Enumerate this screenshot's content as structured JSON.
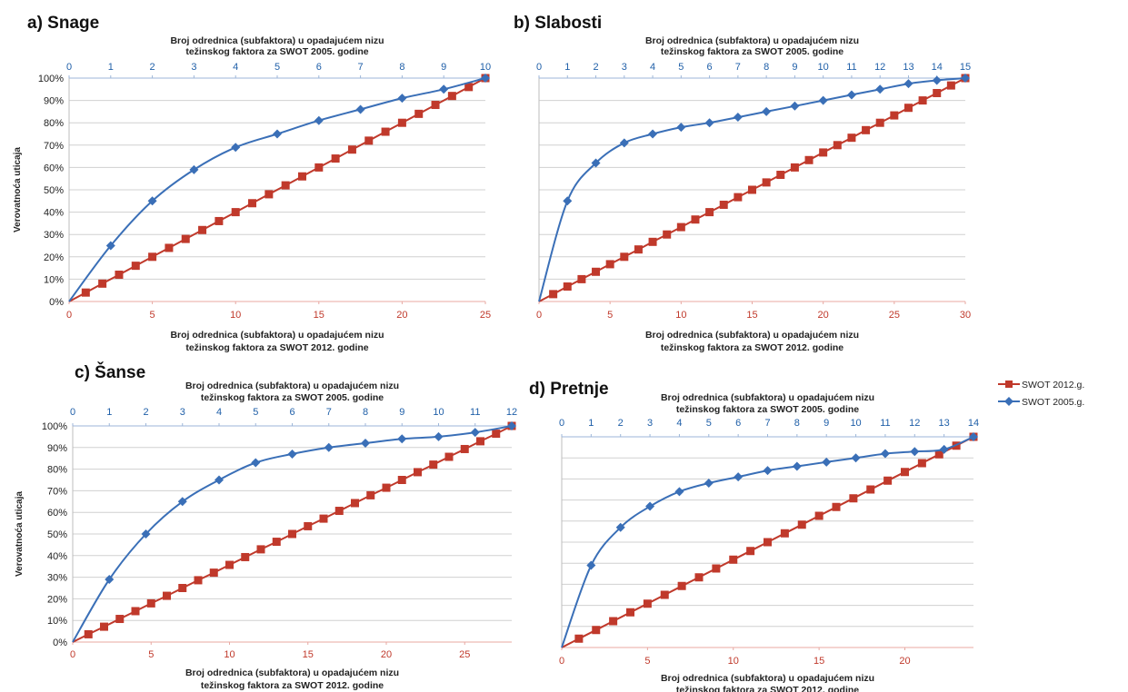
{
  "colors": {
    "red": "#c0392b",
    "blue": "#3a6fb7",
    "grid": "#d0d0d0"
  },
  "legend": [
    {
      "label": "SWOT 2012.g.",
      "color": "#c0392b",
      "marker": "square"
    },
    {
      "label": "SWOT 2005.g.",
      "color": "#3a6fb7",
      "marker": "diamond"
    }
  ],
  "chart_data": [
    {
      "type": "line",
      "title": "a) Snage",
      "xlabel_top": [
        "Broj odrednica (subfaktora) u opadajućem nizu",
        "težinskog faktora za SWOT 2005. godine"
      ],
      "xlabel_bottom": [
        "Broj odrednica (subfaktora) u opadajućem nizu",
        "težinskog faktora za SWOT 2012. godine"
      ],
      "ylabel": "Verovatnoća uticaja",
      "yticks": [
        "0%",
        "10%",
        "20%",
        "30%",
        "40%",
        "50%",
        "60%",
        "70%",
        "80%",
        "90%",
        "100%"
      ],
      "ylim": [
        0,
        100
      ],
      "x_bottom_range": [
        0,
        25
      ],
      "x_bottom_ticks": [
        0,
        5,
        10,
        15,
        20,
        25
      ],
      "x_top_range": [
        0,
        10
      ],
      "x_top_ticks": [
        0,
        1,
        2,
        3,
        4,
        5,
        6,
        7,
        8,
        9,
        10
      ],
      "series": [
        {
          "name": "SWOT 2012.g.",
          "axis": "bottom",
          "x": [
            0,
            1,
            2,
            3,
            4,
            5,
            6,
            7,
            8,
            9,
            10,
            11,
            12,
            13,
            14,
            15,
            16,
            17,
            18,
            19,
            20,
            21,
            22,
            23,
            24,
            25
          ],
          "y": [
            0,
            4,
            8,
            12,
            16,
            20,
            24,
            28,
            32,
            36,
            40,
            44,
            48,
            52,
            56,
            60,
            64,
            68,
            72,
            76,
            80,
            84,
            88,
            92,
            96,
            100
          ]
        },
        {
          "name": "SWOT 2005.g.",
          "axis": "top",
          "x": [
            0,
            1,
            2,
            3,
            4,
            5,
            6,
            7,
            8,
            9,
            10
          ],
          "y": [
            0,
            25,
            45,
            59,
            69,
            75,
            81,
            86,
            91,
            95,
            100
          ]
        }
      ]
    },
    {
      "type": "line",
      "title": "b) Slabosti",
      "xlabel_top": [
        "Broj odrednica (subfaktora) u opadajućem nizu",
        "težinskog faktora za SWOT 2005. godine"
      ],
      "xlabel_bottom": [
        "Broj odrednica (subfaktora) u opadajućem nizu",
        "težinskog faktora za SWOT 2012. godine"
      ],
      "ylabel": "",
      "yticks": [],
      "ylim": [
        0,
        100
      ],
      "x_bottom_range": [
        0,
        30
      ],
      "x_bottom_ticks": [
        0,
        5,
        10,
        15,
        20,
        25,
        30
      ],
      "x_top_range": [
        0,
        15
      ],
      "x_top_ticks": [
        0,
        1,
        2,
        3,
        4,
        5,
        6,
        7,
        8,
        9,
        10,
        11,
        12,
        13,
        14,
        15
      ],
      "series": [
        {
          "name": "SWOT 2012.g.",
          "axis": "bottom",
          "x": [
            0,
            1,
            2,
            3,
            4,
            5,
            6,
            7,
            8,
            9,
            10,
            11,
            12,
            13,
            14,
            15,
            16,
            17,
            18,
            19,
            20,
            21,
            22,
            23,
            24,
            25,
            26,
            27,
            28,
            29,
            30
          ],
          "y": [
            0,
            3.3,
            6.7,
            10,
            13.3,
            16.7,
            20,
            23.3,
            26.7,
            30,
            33.3,
            36.7,
            40,
            43.3,
            46.7,
            50,
            53.3,
            56.7,
            60,
            63.3,
            66.7,
            70,
            73.3,
            76.7,
            80,
            83.3,
            86.7,
            90,
            93.3,
            96.7,
            100
          ]
        },
        {
          "name": "SWOT 2005.g.",
          "axis": "top",
          "x": [
            0,
            1,
            2,
            3,
            4,
            5,
            6,
            7,
            8,
            9,
            10,
            11,
            12,
            13,
            14,
            15
          ],
          "y": [
            0,
            45,
            62,
            71,
            75,
            78,
            80,
            82.5,
            85,
            87.5,
            90,
            92.5,
            95,
            97.5,
            99,
            100
          ]
        }
      ]
    },
    {
      "type": "line",
      "title": "c) Šanse",
      "xlabel_top": [
        "Broj odrednica (subfaktora) u opadajućem nizu",
        "težinskog faktora za SWOT 2005. godine"
      ],
      "xlabel_bottom": [
        "Broj odrednica (subfaktora) u opadajućem nizu",
        "težinskog faktora za SWOT 2012. godine"
      ],
      "ylabel": "Verovatnoća uticaja",
      "yticks": [
        "0%",
        "10%",
        "20%",
        "30%",
        "40%",
        "50%",
        "60%",
        "70%",
        "80%",
        "90%",
        "100%"
      ],
      "ylim": [
        0,
        100
      ],
      "x_bottom_range": [
        0,
        28
      ],
      "x_bottom_ticks": [
        0,
        5,
        10,
        15,
        20,
        25
      ],
      "x_top_range": [
        0,
        12
      ],
      "x_top_ticks": [
        0,
        1,
        2,
        3,
        4,
        5,
        6,
        7,
        8,
        9,
        10,
        11,
        12
      ],
      "series": [
        {
          "name": "SWOT 2012.g.",
          "axis": "bottom",
          "x": [
            0,
            1,
            2,
            3,
            4,
            5,
            6,
            7,
            8,
            9,
            10,
            11,
            12,
            13,
            14,
            15,
            16,
            17,
            18,
            19,
            20,
            21,
            22,
            23,
            24,
            25,
            26,
            27,
            28
          ],
          "y": [
            0,
            3.6,
            7.1,
            10.7,
            14.3,
            17.9,
            21.4,
            25,
            28.6,
            32.1,
            35.7,
            39.3,
            42.9,
            46.4,
            50,
            53.6,
            57.1,
            60.7,
            64.3,
            67.9,
            71.4,
            75,
            78.6,
            82.1,
            85.7,
            89.3,
            92.9,
            96.4,
            100
          ]
        },
        {
          "name": "SWOT 2005.g.",
          "axis": "top",
          "x": [
            0,
            1,
            2,
            3,
            4,
            5,
            6,
            7,
            8,
            9,
            10,
            11,
            12
          ],
          "y": [
            0,
            29,
            50,
            65,
            75,
            83,
            87,
            90,
            92,
            94,
            95,
            97,
            100
          ]
        }
      ]
    },
    {
      "type": "line",
      "title": "d) Pretnje",
      "xlabel_top": [
        "Broj odrednica (subfaktora) u opadajućem nizu",
        "težinskog faktora za SWOT 2005. godine"
      ],
      "xlabel_bottom": [
        "Broj odrednica (subfaktora) u opadajućem nizu",
        "težinskog faktora za SWOT 2012. godine"
      ],
      "ylabel": "",
      "yticks": [],
      "ylim": [
        0,
        100
      ],
      "x_bottom_range": [
        0,
        24
      ],
      "x_bottom_ticks": [
        0,
        5,
        10,
        15,
        20
      ],
      "x_top_range": [
        0,
        14
      ],
      "x_top_ticks": [
        0,
        1,
        2,
        3,
        4,
        5,
        6,
        7,
        8,
        9,
        10,
        11,
        12,
        13,
        14
      ],
      "series": [
        {
          "name": "SWOT 2012.g.",
          "axis": "bottom",
          "x": [
            0,
            1,
            2,
            3,
            4,
            5,
            6,
            7,
            8,
            9,
            10,
            11,
            12,
            13,
            14,
            15,
            16,
            17,
            18,
            19,
            20,
            21,
            22,
            23,
            24
          ],
          "y": [
            0,
            4.2,
            8.3,
            12.5,
            16.7,
            20.8,
            25,
            29.2,
            33.3,
            37.5,
            41.7,
            45.8,
            50,
            54.2,
            58.3,
            62.5,
            66.7,
            70.8,
            75,
            79.2,
            83.3,
            87.5,
            91.7,
            95.8,
            100
          ]
        },
        {
          "name": "SWOT 2005.g.",
          "axis": "top",
          "x": [
            0,
            1,
            2,
            3,
            4,
            5,
            6,
            7,
            8,
            9,
            10,
            11,
            12,
            13,
            14
          ],
          "y": [
            0,
            39,
            57,
            67,
            74,
            78,
            81,
            84,
            86,
            88,
            90,
            92,
            93,
            94,
            100
          ]
        }
      ]
    }
  ]
}
